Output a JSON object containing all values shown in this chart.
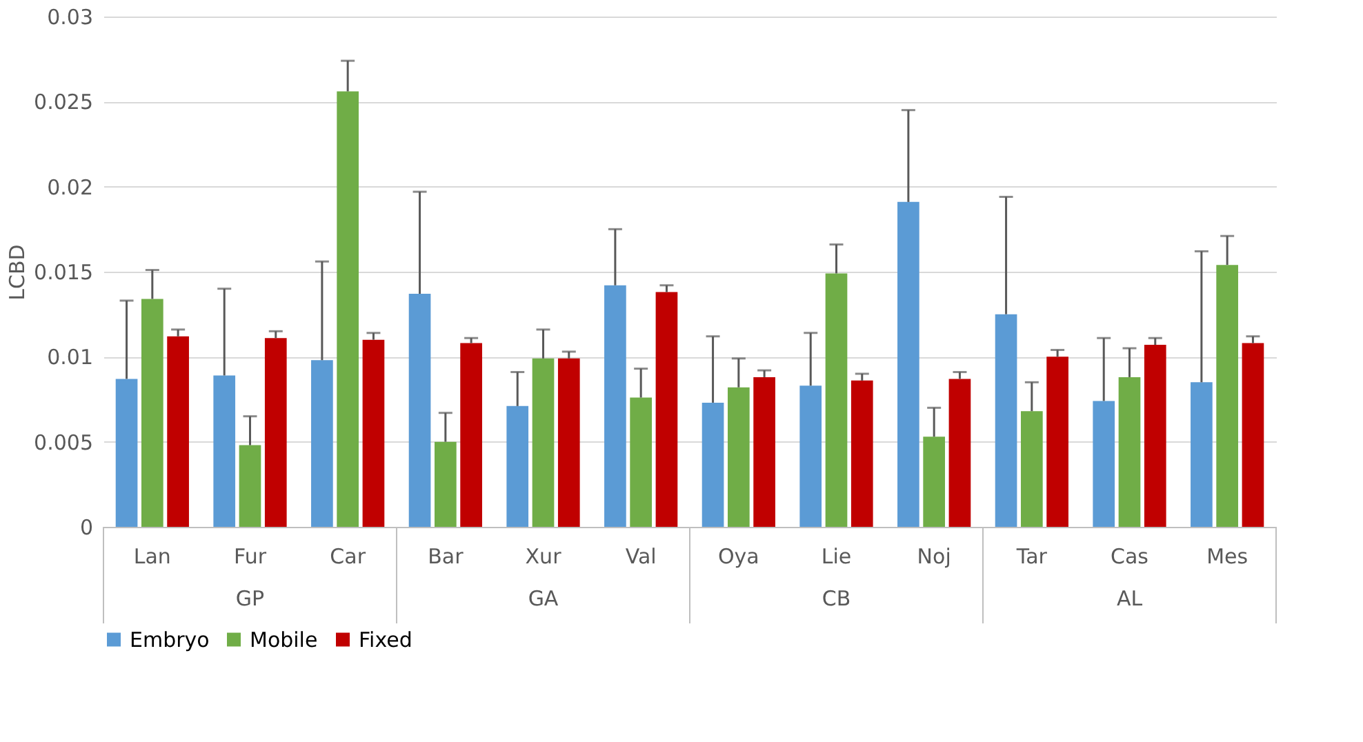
{
  "chart_data": {
    "type": "bar",
    "ylabel": "LCBD",
    "categories": [
      "Lan",
      "Fur",
      "Car",
      "Bar",
      "Xur",
      "Val",
      "Oya",
      "Lie",
      "Noj",
      "Tar",
      "Cas",
      "Mes"
    ],
    "annotations": [
      "GP",
      "GA",
      "CB",
      "AL"
    ],
    "series": [
      {
        "name": "Embryo",
        "color": "#5b9bd5",
        "values": [
          0.0087,
          0.0089,
          0.0098,
          0.0137,
          0.0071,
          0.0142,
          0.0073,
          0.0083,
          0.0191,
          0.0125,
          0.0074,
          0.0085
        ],
        "errors": [
          [
            0.0087,
            0.0133
          ],
          [
            0.0089,
            0.014
          ],
          [
            0.0098,
            0.0156
          ],
          [
            0.0137,
            0.0197
          ],
          [
            0.0071,
            0.0091
          ],
          [
            0.0142,
            0.0175
          ],
          [
            0.0073,
            0.0112
          ],
          [
            0.0083,
            0.0114
          ],
          [
            0.0191,
            0.0245
          ],
          [
            0.0125,
            0.0194
          ],
          [
            0.0074,
            0.0111
          ],
          [
            0.0085,
            0.0162
          ]
        ]
      },
      {
        "name": "Mobile",
        "color": "#70ad47",
        "values": [
          0.0134,
          0.0048,
          0.0256,
          0.005,
          0.0099,
          0.0076,
          0.0082,
          0.0149,
          0.0053,
          0.0068,
          0.0088,
          0.0154
        ],
        "errors": [
          [
            0.0134,
            0.0151
          ],
          [
            0.0048,
            0.0065
          ],
          [
            0.0256,
            0.0274
          ],
          [
            0.005,
            0.0067
          ],
          [
            0.0099,
            0.0116
          ],
          [
            0.0076,
            0.0093
          ],
          [
            0.0082,
            0.0099
          ],
          [
            0.0149,
            0.0166
          ],
          [
            0.0053,
            0.007
          ],
          [
            0.0068,
            0.0085
          ],
          [
            0.0088,
            0.0105
          ],
          [
            0.0154,
            0.0171
          ]
        ]
      },
      {
        "name": "Fixed",
        "color": "#c00000",
        "values": [
          0.0112,
          0.0111,
          0.011,
          0.0108,
          0.0099,
          0.0138,
          0.0088,
          0.0086,
          0.0087,
          0.01,
          0.0107,
          0.0108
        ],
        "errors": [
          [
            0.0112,
            0.0116
          ],
          [
            0.0111,
            0.0115
          ],
          [
            0.011,
            0.0114
          ],
          [
            0.0108,
            0.0111
          ],
          [
            0.0099,
            0.0103
          ],
          [
            0.0138,
            0.0142
          ],
          [
            0.0088,
            0.0092
          ],
          [
            0.0086,
            0.009
          ],
          [
            0.0087,
            0.0091
          ],
          [
            0.01,
            0.0104
          ],
          [
            0.0107,
            0.0111
          ],
          [
            0.0108,
            0.0112
          ]
        ]
      }
    ],
    "ylim": [
      0,
      0.03
    ],
    "yticks": [
      0,
      0.005,
      0.01,
      0.015,
      0.02,
      0.025,
      0.03
    ],
    "grid": "y",
    "legend": "bottom"
  }
}
